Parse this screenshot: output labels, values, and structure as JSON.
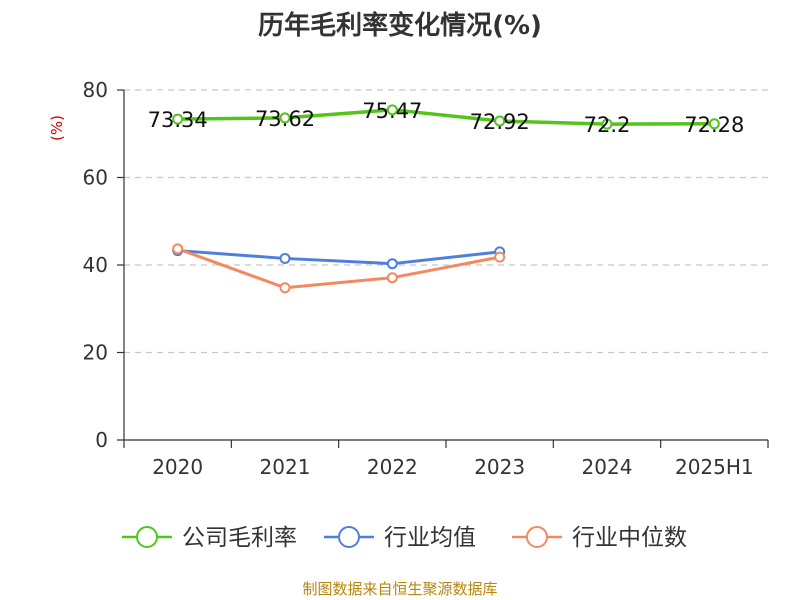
{
  "chart_data": {
    "type": "line",
    "title": "历年毛利率变化情况(%)",
    "ylabel": "(%)",
    "xlabel": "",
    "categories": [
      "2020",
      "2021",
      "2022",
      "2023",
      "2024",
      "2025H1"
    ],
    "ylim": [
      0,
      80
    ],
    "yticks": [
      "0",
      "20",
      "40",
      "60",
      "80"
    ],
    "grid": true,
    "legend_position": "bottom",
    "series": [
      {
        "name": "公司毛利率",
        "color": "#52c41a",
        "values": [
          73.34,
          73.62,
          75.47,
          72.92,
          72.2,
          72.28
        ],
        "labels": [
          "73.34",
          "73.62",
          "75.47",
          "72.92",
          "72.2",
          "72.28"
        ]
      },
      {
        "name": "行业均值",
        "color": "#4f7fdc",
        "values": [
          43.3,
          41.5,
          40.3,
          43.0,
          null,
          null
        ]
      },
      {
        "name": "行业中位数",
        "color": "#f4895f",
        "values": [
          43.7,
          34.8,
          37.1,
          41.8,
          null,
          null
        ]
      }
    ]
  },
  "source": "制图数据来自恒生聚源数据库"
}
